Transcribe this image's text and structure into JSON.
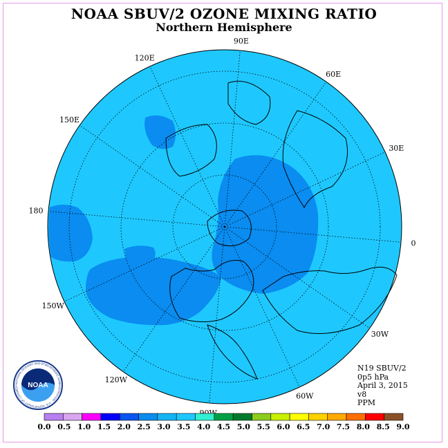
{
  "title": "NOAA SBUV/2 OZONE MIXING RATIO",
  "subtitle": "Northern Hemisphere",
  "longitude_labels": [
    {
      "id": "lon-90e",
      "text": "90E",
      "angle": 85
    },
    {
      "id": "lon-60e",
      "text": "60E",
      "angle": 55
    },
    {
      "id": "lon-30e",
      "text": "30E",
      "angle": 25
    },
    {
      "id": "lon-0",
      "text": "0",
      "angle": -5
    },
    {
      "id": "lon-30w",
      "text": "30W",
      "angle": -35
    },
    {
      "id": "lon-60w",
      "text": "60W",
      "angle": -65
    },
    {
      "id": "lon-90w",
      "text": "90W",
      "angle": -95
    },
    {
      "id": "lon-120w",
      "text": "120W",
      "angle": -125
    },
    {
      "id": "lon-150w",
      "text": "150W",
      "angle": -155
    },
    {
      "id": "lon-180",
      "text": "180",
      "angle": 175
    },
    {
      "id": "lon-150e",
      "text": "150E",
      "angle": 145
    },
    {
      "id": "lon-120e",
      "text": "120E",
      "angle": 115
    }
  ],
  "info": {
    "instrument": "N19 SBUV/2",
    "level": "0p5 hPa",
    "date": "April 3, 2015",
    "version": "v8",
    "units": "PPM"
  },
  "logo": {
    "text": "NOAA",
    "ring_text": "NATIONAL OCEANIC AND ATMOSPHERIC ADMINISTRATION · U.S. DEPARTMENT OF COMMERCE"
  },
  "colorbar": {
    "ticks": [
      "0.0",
      "0.5",
      "1.0",
      "1.5",
      "2.0",
      "2.5",
      "3.0",
      "3.5",
      "4.0",
      "4.5",
      "5.0",
      "5.5",
      "6.0",
      "6.5",
      "7.0",
      "7.5",
      "8.0",
      "8.5",
      "9.0"
    ],
    "colors": [
      "#b77ff0",
      "#d9a6f0",
      "#ff00ff",
      "#0000ff",
      "#0a55f0",
      "#0a8cf0",
      "#14b4f5",
      "#1ec8ff",
      "#32f0d2",
      "#00a046",
      "#007a2e",
      "#8ccc1e",
      "#c8f000",
      "#ffff00",
      "#ffd200",
      "#ffaa00",
      "#ff6e00",
      "#ff0000",
      "#8c5028"
    ]
  },
  "map": {
    "background_color": "#1ec8ff",
    "region_color": "#0a8cf0"
  }
}
